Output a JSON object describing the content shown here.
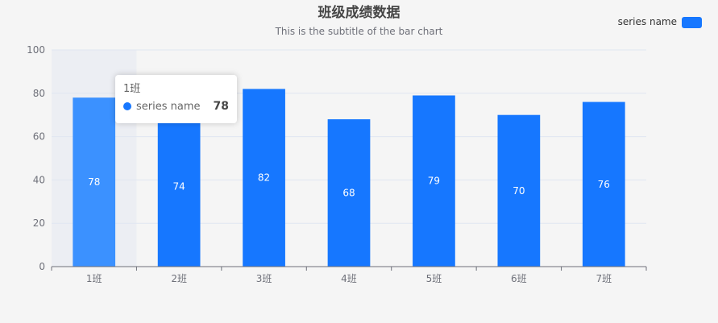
{
  "chart_data": {
    "type": "bar",
    "title": "班级成绩数据",
    "subtitle": "This is the subtitle of the bar chart",
    "categories": [
      "1班",
      "2班",
      "3班",
      "4班",
      "5班",
      "6班",
      "7班"
    ],
    "series": [
      {
        "name": "series name",
        "values": [
          78,
          74,
          82,
          68,
          79,
          70,
          76
        ]
      }
    ],
    "ylim": [
      0,
      100
    ],
    "yticks": [
      0,
      20,
      40,
      60,
      80,
      100
    ],
    "grid": true,
    "legend_position": "top-right",
    "highlighted_category": "1班"
  },
  "tooltip": {
    "title": "1班",
    "series_name": "series name",
    "value": "78"
  },
  "colors": {
    "bar": "#1677ff",
    "bar_highlight": "#3b91ff",
    "hover_band": "#eceef3",
    "grid": "#e0e6f1",
    "axis": "#6e7079",
    "text": "#6e7079",
    "title": "#464646"
  }
}
